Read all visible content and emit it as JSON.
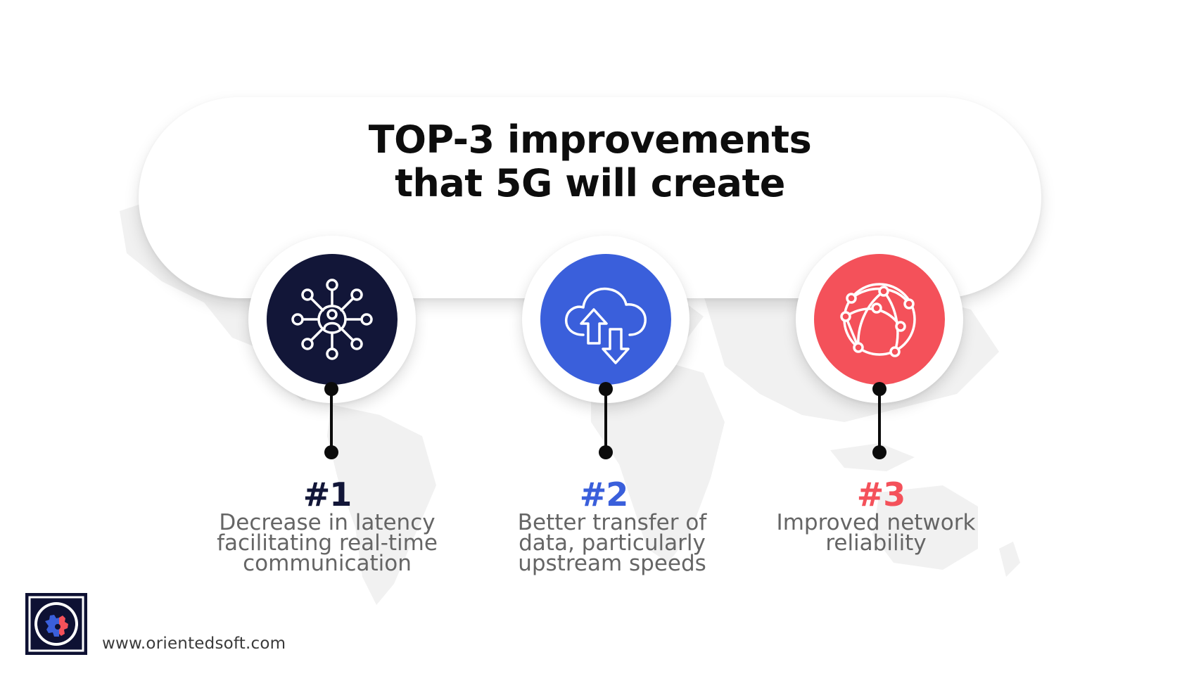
{
  "title": {
    "line1": "TOP-3 improvements",
    "line2": "that 5G will create"
  },
  "items": [
    {
      "number": "#1",
      "description": "Decrease in latency\nfacilitating real-time\ncommunication",
      "color": "#121638",
      "icon": "network-hub-person-icon"
    },
    {
      "number": "#2",
      "description": "Better transfer of\ndata, particularly\nupstream speeds",
      "color": "#3a5fdb",
      "icon": "cloud-upload-download-icon"
    },
    {
      "number": "#3",
      "description": "Improved network\nreliability",
      "color": "#f4515a",
      "icon": "globe-network-icon"
    }
  ],
  "footer": {
    "website": "www.orientedsoft.com",
    "logo_icon": "orientedsoft-gear-logo"
  }
}
